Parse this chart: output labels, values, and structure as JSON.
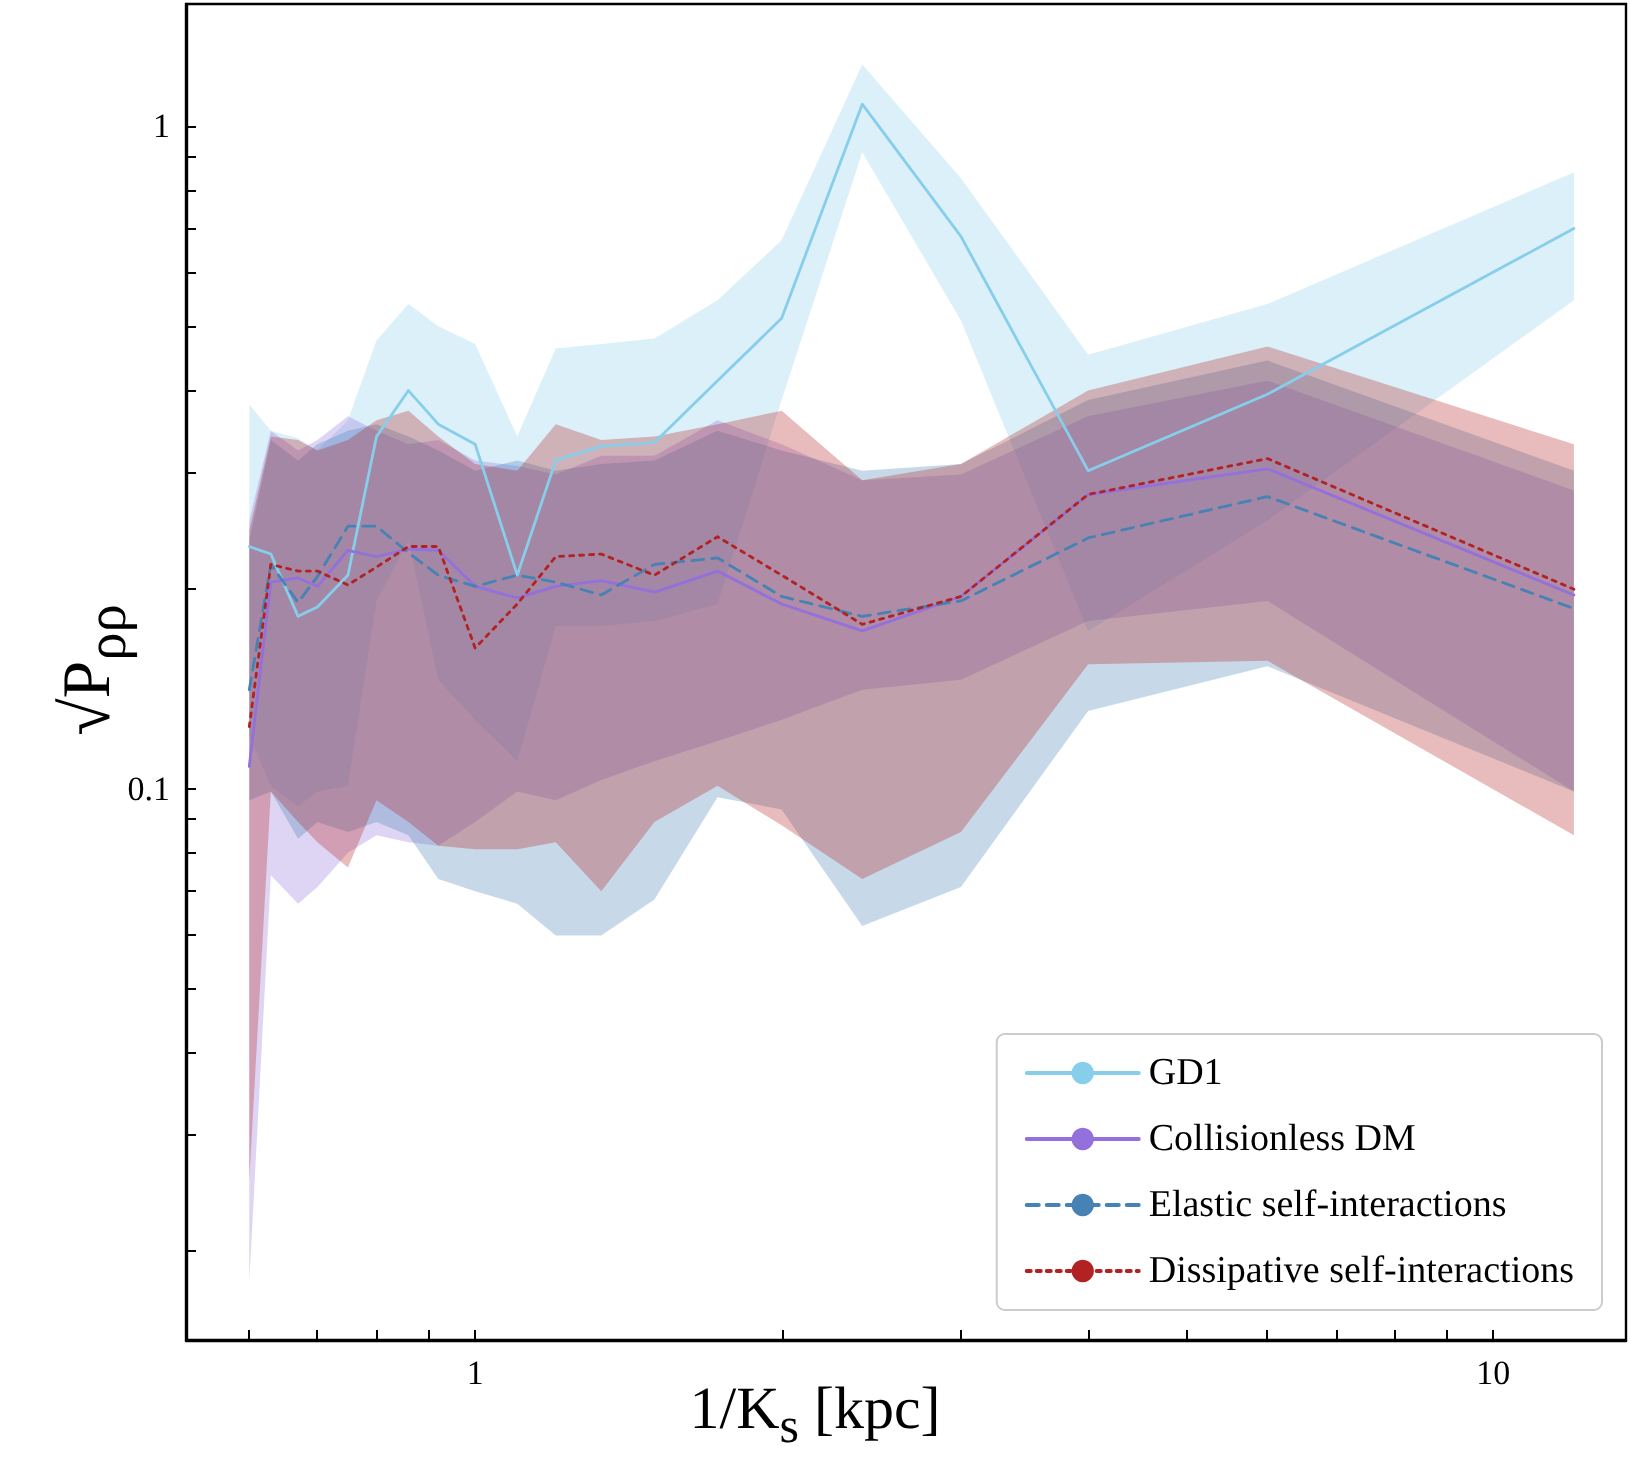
{
  "chart_data": {
    "type": "line",
    "xlabel": "1/K$_{s}$ [kpc]",
    "ylabel": "√P$_{ρρ}$",
    "log": "xy",
    "grid": false,
    "legend": "bottom right",
    "xlim": [
      0.52,
      13.5
    ],
    "ylim": [
      0.0147,
      1.53
    ],
    "xticks": [
      {
        "value": 0.6,
        "label": null
      },
      {
        "value": 0.7,
        "label": null
      },
      {
        "value": 0.8,
        "label": null
      },
      {
        "value": 0.9,
        "label": null
      },
      1,
      {
        "value": 2,
        "label": null
      },
      {
        "value": 3,
        "label": null
      },
      {
        "value": 4,
        "label": null
      },
      {
        "value": 5,
        "label": null
      },
      {
        "value": 6,
        "label": null
      },
      {
        "value": 7,
        "label": null
      },
      {
        "value": 8,
        "label": null
      },
      {
        "value": 9,
        "label": null
      },
      10
    ],
    "yticks": [
      {
        "value": 0.02,
        "label": null
      },
      {
        "value": 0.03,
        "label": null
      },
      {
        "value": 0.04,
        "label": null
      },
      {
        "value": 0.05,
        "label": null
      },
      {
        "value": 0.06,
        "label": null
      },
      {
        "value": 0.07,
        "label": null
      },
      {
        "value": 0.08,
        "label": null
      },
      {
        "value": 0.09,
        "label": null
      },
      0.1,
      {
        "value": 0.2,
        "label": null
      },
      {
        "value": 0.3,
        "label": null
      },
      {
        "value": 0.4,
        "label": null
      },
      {
        "value": 0.5,
        "label": null
      },
      {
        "value": 0.6,
        "label": null
      },
      {
        "value": 0.7,
        "label": null
      },
      {
        "value": 0.8,
        "label": null
      },
      {
        "value": 0.9,
        "label": null
      },
      1
    ],
    "x": [
      0.6,
      0.63,
      0.67,
      0.7,
      0.75,
      0.8,
      0.86,
      0.92,
      1.0,
      1.1,
      1.2,
      1.33,
      1.5,
      1.73,
      2.0,
      2.4,
      3.0,
      4.0,
      6.0,
      12.0
    ],
    "series": [
      {
        "name": "GD1",
        "color": "#87ceeb",
        "line_style": "solid",
        "values": [
          0.232,
          0.226,
          0.182,
          0.188,
          0.21,
          0.34,
          0.399,
          0.355,
          0.331,
          0.21,
          0.313,
          0.329,
          0.333,
          0.413,
          0.513,
          1.08,
          0.682,
          0.302,
          0.394,
          0.701
        ],
        "upper": [
          0.38,
          0.347,
          0.338,
          0.324,
          0.36,
          0.475,
          0.539,
          0.499,
          0.469,
          0.34,
          0.462,
          0.469,
          0.478,
          0.546,
          0.673,
          1.24,
          0.835,
          0.452,
          0.539,
          0.852
        ],
        "lower": [
          0.12,
          0.101,
          0.094,
          0.099,
          0.101,
          0.192,
          0.237,
          0.146,
          0.127,
          0.11,
          0.176,
          0.176,
          0.179,
          0.19,
          0.386,
          0.914,
          0.509,
          0.173,
          0.254,
          0.546
        ]
      },
      {
        "name": "Collisionless DM",
        "color": "#9370db",
        "line_style": "solid",
        "values": [
          0.108,
          0.205,
          0.208,
          0.202,
          0.229,
          0.224,
          0.23,
          0.229,
          0.202,
          0.194,
          0.202,
          0.206,
          0.198,
          0.213,
          0.19,
          0.173,
          0.195,
          0.278,
          0.304,
          0.196
        ],
        "upper": [
          0.254,
          0.347,
          0.324,
          0.336,
          0.365,
          0.347,
          0.331,
          0.336,
          0.313,
          0.307,
          0.298,
          0.318,
          0.318,
          0.36,
          0.331,
          0.292,
          0.298,
          0.365,
          0.413,
          0.282
        ],
        "lower": [
          0.018,
          0.074,
          0.067,
          0.071,
          0.08,
          0.085,
          0.083,
          0.082,
          0.089,
          0.099,
          0.096,
          0.103,
          0.11,
          0.118,
          0.127,
          0.141,
          0.146,
          0.179,
          0.192,
          0.099
        ]
      },
      {
        "name": "Elastic self-interactions",
        "color": "#4682b4",
        "line_style": "dashed",
        "values": [
          0.141,
          0.218,
          0.191,
          0.209,
          0.249,
          0.249,
          0.227,
          0.21,
          0.202,
          0.21,
          0.205,
          0.196,
          0.218,
          0.223,
          0.195,
          0.182,
          0.192,
          0.239,
          0.276,
          0.187
        ],
        "upper": [
          0.237,
          0.336,
          0.313,
          0.331,
          0.347,
          0.355,
          0.34,
          0.324,
          0.302,
          0.313,
          0.302,
          0.309,
          0.313,
          0.347,
          0.324,
          0.302,
          0.309,
          0.386,
          0.443,
          0.302
        ],
        "lower": [
          0.096,
          0.099,
          0.084,
          0.089,
          0.086,
          0.089,
          0.085,
          0.073,
          0.07,
          0.067,
          0.06,
          0.06,
          0.068,
          0.097,
          0.093,
          0.062,
          0.071,
          0.131,
          0.153,
          0.099
        ]
      },
      {
        "name": "Dissipative self-interactions",
        "color": "#b22222",
        "line_style": "dotted",
        "values": [
          0.124,
          0.218,
          0.213,
          0.213,
          0.203,
          0.216,
          0.232,
          0.232,
          0.163,
          0.19,
          0.224,
          0.226,
          0.21,
          0.24,
          0.21,
          0.177,
          0.195,
          0.278,
          0.315,
          0.2
        ],
        "upper": [
          0.245,
          0.34,
          0.336,
          0.324,
          0.336,
          0.36,
          0.372,
          0.34,
          0.309,
          0.302,
          0.355,
          0.336,
          0.34,
          0.355,
          0.372,
          0.292,
          0.309,
          0.399,
          0.465,
          0.331
        ],
        "lower": [
          0.0256,
          0.099,
          0.089,
          0.083,
          0.076,
          0.096,
          0.089,
          0.082,
          0.081,
          0.081,
          0.083,
          0.07,
          0.089,
          0.101,
          0.088,
          0.073,
          0.086,
          0.154,
          0.156,
          0.085
        ]
      }
    ]
  }
}
